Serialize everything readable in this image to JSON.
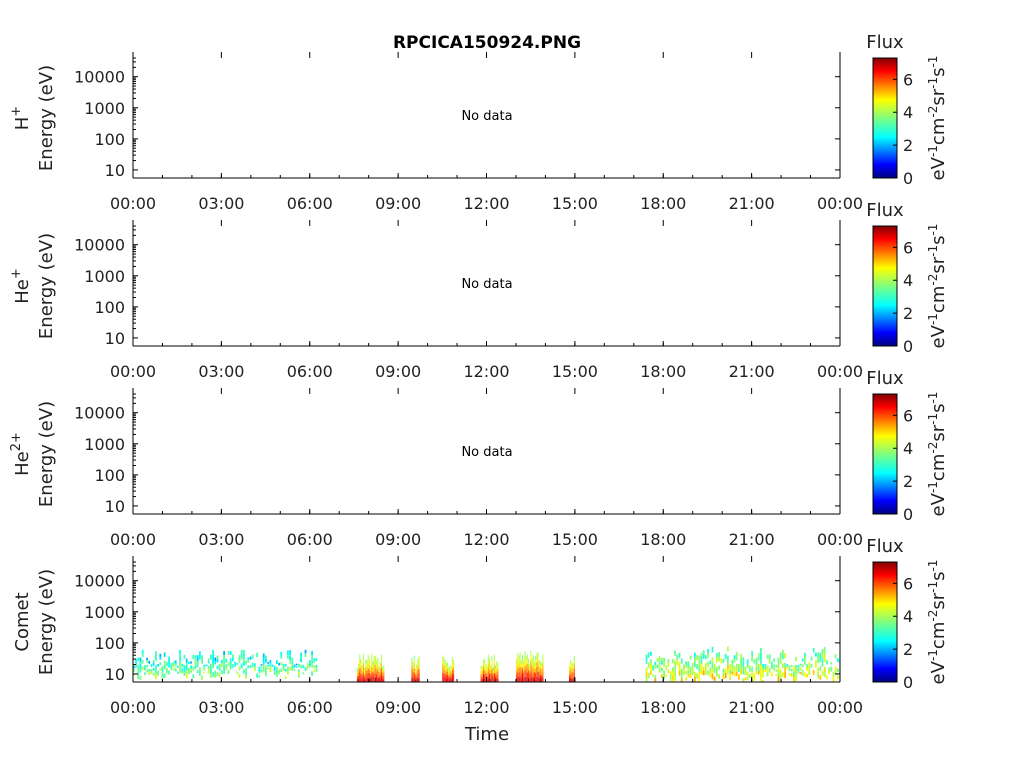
{
  "title": "RPCICA150924.PNG",
  "xlabel": "Time",
  "xticks": [
    "00:00",
    "03:00",
    "06:00",
    "09:00",
    "12:00",
    "15:00",
    "18:00",
    "21:00",
    "00:00"
  ],
  "colorbar": {
    "title": "Flux",
    "ticks": [
      "0",
      "2",
      "4",
      "6"
    ],
    "label_base": "eV",
    "unit_sup_1": "-1",
    "unit_mid": "cm",
    "unit_sup_2": "-2",
    "unit_sr": "sr",
    "unit_sup_3": "-1",
    "unit_s": "s",
    "unit_sup_4": "-1",
    "range": [
      0,
      7.3
    ]
  },
  "panels": [
    {
      "species": "H",
      "species_sup": "+",
      "ylabel": "Energy (eV)",
      "no_data": "No data",
      "yticks": [
        "10",
        "100",
        "1000",
        "10000"
      ]
    },
    {
      "species": "He",
      "species_sup": "+",
      "ylabel": "Energy (eV)",
      "no_data": "No data",
      "yticks": [
        "10",
        "100",
        "1000",
        "10000"
      ]
    },
    {
      "species": "He",
      "species_sup": "2+",
      "ylabel": "Energy (eV)",
      "no_data": "No data",
      "yticks": [
        "10",
        "100",
        "1000",
        "10000"
      ]
    },
    {
      "species": "Comet",
      "species_sup": "",
      "ylabel": "Energy (eV)",
      "no_data": "",
      "yticks": [
        "10",
        "100",
        "1000",
        "10000"
      ]
    }
  ],
  "chart_data": {
    "type": "heatmap",
    "title": "RPCICA150924.PNG",
    "xlabel": "Time",
    "ylabel": "Energy (eV)",
    "xlim_hours": [
      0,
      24
    ],
    "ylim_eV": [
      5.5,
      40000
    ],
    "yscale": "log",
    "colorscale": "jet",
    "color_range": [
      0,
      7.3
    ],
    "panels": [
      {
        "species": "H+",
        "status": "No data",
        "bursts": []
      },
      {
        "species": "He+",
        "status": "No data",
        "bursts": []
      },
      {
        "species": "He2+",
        "status": "No data",
        "bursts": []
      },
      {
        "species": "Comet",
        "status": "data",
        "bursts": [
          {
            "t_start": 0.0,
            "t_end": 6.2,
            "e_low": 8,
            "e_high": 60,
            "flux_peak": 5.5,
            "kind": "sparse"
          },
          {
            "t_start": 7.6,
            "t_end": 8.5,
            "e_low": 6,
            "e_high": 45,
            "flux_peak": 7.3,
            "kind": "intense"
          },
          {
            "t_start": 9.45,
            "t_end": 9.7,
            "e_low": 6,
            "e_high": 40,
            "flux_peak": 7.3,
            "kind": "intense"
          },
          {
            "t_start": 10.5,
            "t_end": 10.9,
            "e_low": 6,
            "e_high": 45,
            "flux_peak": 7.3,
            "kind": "intense"
          },
          {
            "t_start": 11.8,
            "t_end": 12.4,
            "e_low": 6,
            "e_high": 50,
            "flux_peak": 7.3,
            "kind": "intense"
          },
          {
            "t_start": 13.0,
            "t_end": 13.9,
            "e_low": 8,
            "e_high": 60,
            "flux_peak": 7.3,
            "kind": "intense"
          },
          {
            "t_start": 14.8,
            "t_end": 15.0,
            "e_low": 6,
            "e_high": 40,
            "flux_peak": 7.3,
            "kind": "intense"
          },
          {
            "t_start": 17.4,
            "t_end": 24.0,
            "e_low": 6,
            "e_high": 80,
            "flux_peak": 6.5,
            "kind": "sparse"
          }
        ]
      }
    ]
  }
}
